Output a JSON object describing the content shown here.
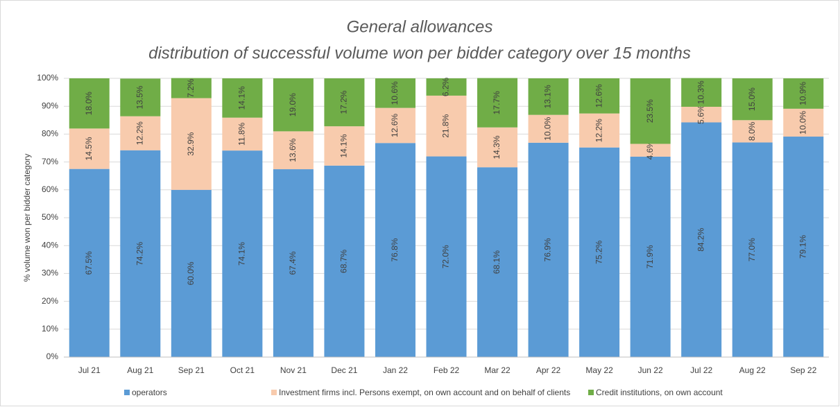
{
  "chart_data": {
    "type": "stacked_bar",
    "title": "General allowances",
    "subtitle": "distribution of successful volume won per bidder category over 15 months",
    "ylabel": "% volume won per bidder category",
    "categories": [
      "Jul 21",
      "Aug 21",
      "Sep 21",
      "Oct 21",
      "Nov 21",
      "Dec 21",
      "Jan 22",
      "Feb 22",
      "Mar 22",
      "Apr 22",
      "May 22",
      "Jun 22",
      "Jul 22",
      "Aug 22",
      "Sep 22"
    ],
    "series": [
      {
        "name": "operators",
        "color": "#5b9bd5",
        "values": [
          67.5,
          74.2,
          60.0,
          74.1,
          67.4,
          68.7,
          76.8,
          72.0,
          68.1,
          76.9,
          75.2,
          71.9,
          84.2,
          77.0,
          79.1
        ],
        "value_labels": [
          "67.5%",
          "74.2%",
          "60.0%",
          "74.1%",
          "67.4%",
          "68.7%",
          "76.8%",
          "72.0%",
          "68.1%",
          "76.9%",
          "75.2%",
          "71.9%",
          "84.2%",
          "77.0%",
          "79.1%"
        ]
      },
      {
        "name": "Investment firms incl. Persons exempt, on own account and on behalf of clients",
        "color": "#f8cbad",
        "values": [
          14.5,
          12.2,
          32.9,
          11.8,
          13.6,
          14.1,
          12.6,
          21.8,
          14.3,
          10.0,
          12.2,
          4.6,
          5.6,
          8.0,
          10.0
        ],
        "value_labels": [
          "14.5%",
          "12.2%",
          "32.9%",
          "11.8%",
          "13.6%",
          "14.1%",
          "12.6%",
          "21.8%",
          "14.3%",
          "10.0%",
          "12.2%",
          "4.6%",
          "5.6%",
          "8.0%",
          "10.0%"
        ]
      },
      {
        "name": "Credit institutions, on own account",
        "color": "#70ad47",
        "values": [
          18.0,
          13.5,
          7.2,
          14.1,
          19.0,
          17.2,
          10.6,
          6.2,
          17.7,
          13.1,
          12.6,
          23.5,
          10.3,
          15.0,
          10.9
        ],
        "value_labels": [
          "18.0%",
          "13.5%",
          "7.2%",
          "14.1%",
          "19.0%",
          "17.2%",
          "10.6%",
          "6.2%",
          "17.7%",
          "13.1%",
          "12.6%",
          "23.5%",
          "10.3%",
          "15.0%",
          "10.9%"
        ]
      }
    ],
    "ylim": [
      0,
      100
    ],
    "yticks": [
      {
        "value": 0,
        "label": "0%"
      },
      {
        "value": 10,
        "label": "10%"
      },
      {
        "value": 20,
        "label": "20%"
      },
      {
        "value": 30,
        "label": "30%"
      },
      {
        "value": 40,
        "label": "40%"
      },
      {
        "value": 50,
        "label": "50%"
      },
      {
        "value": 60,
        "label": "60%"
      },
      {
        "value": 70,
        "label": "70%"
      },
      {
        "value": 80,
        "label": "80%"
      },
      {
        "value": 90,
        "label": "90%"
      },
      {
        "value": 100,
        "label": "100%"
      }
    ],
    "grid": true,
    "legend": "bottom"
  }
}
